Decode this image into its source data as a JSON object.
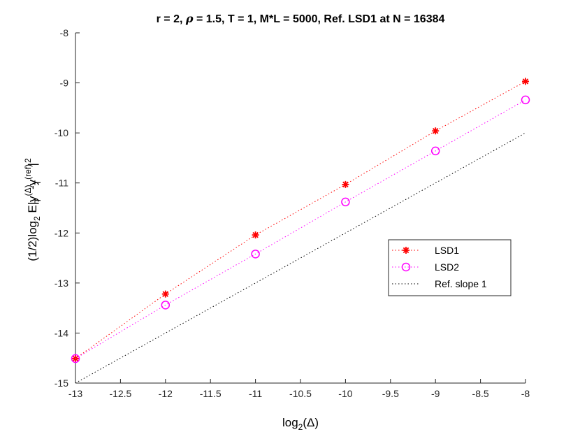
{
  "chart_data": {
    "type": "line",
    "title_parts": [
      "r = 2, ",
      "ρ",
      " = 1.5, T = 1, M*L  = 5000, Ref. LSD1 at N = 16384"
    ],
    "xlabel": {
      "pre": "log",
      "sub": "2",
      "post": "(Δ)"
    },
    "ylabel": {
      "a": "(1/2)log",
      "a_sub": "2",
      "b": " E|y",
      "b_sup": "(Δ)",
      "b_sub": "T",
      "c": "-y",
      "c_sup": "(ref)",
      "c_sub": "T",
      "d": "|",
      "d_sup": "2"
    },
    "xlim": [
      -13,
      -8
    ],
    "ylim": [
      -15,
      -8
    ],
    "xticks": [
      -13,
      -12.5,
      -12,
      -11.5,
      -11,
      -10.5,
      -10,
      -9.5,
      -9,
      -8.5,
      -8
    ],
    "xtick_labels": [
      "-13",
      "-12.5",
      "-12",
      "-11.5",
      "-11",
      "-10.5",
      "-10",
      "-9.5",
      "-9",
      "-8.5",
      "-8"
    ],
    "yticks": [
      -15,
      -14,
      -13,
      -12,
      -11,
      -10,
      -9,
      -8
    ],
    "ytick_labels": [
      "-15",
      "-14",
      "-13",
      "-12",
      "-11",
      "-10",
      "-9",
      "-8"
    ],
    "legend_position": "right",
    "series": [
      {
        "name": "LSD1",
        "color": "#ff0000",
        "marker": "asterisk",
        "x": [
          -13,
          -12,
          -11,
          -10,
          -9,
          -8
        ],
        "y": [
          -14.51,
          -13.22,
          -12.04,
          -11.03,
          -9.96,
          -8.97
        ]
      },
      {
        "name": "LSD2",
        "color": "#ff00ff",
        "marker": "circle",
        "x": [
          -13,
          -12,
          -11,
          -10,
          -9,
          -8
        ],
        "y": [
          -14.51,
          -13.44,
          -12.42,
          -11.38,
          -10.36,
          -9.34
        ]
      },
      {
        "name": "Ref. slope 1",
        "color": "#000000",
        "marker": "none",
        "x": [
          -13,
          -8
        ],
        "y": [
          -15,
          -10
        ]
      }
    ]
  }
}
